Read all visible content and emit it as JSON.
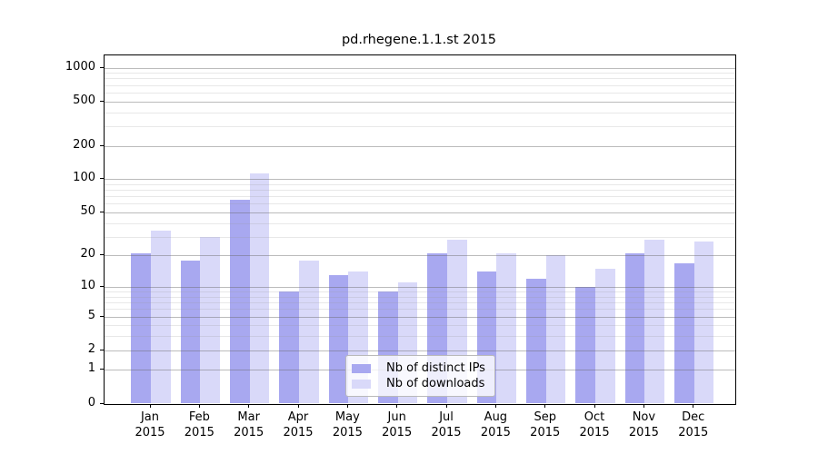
{
  "title": "pd.rhegene.1.1.st 2015",
  "chart_data": {
    "type": "bar",
    "title": "pd.rhegene.1.1.st 2015",
    "xlabel": "",
    "ylabel": "",
    "year": "2015",
    "months": [
      "Jan",
      "Feb",
      "Mar",
      "Apr",
      "May",
      "Jun",
      "Jul",
      "Aug",
      "Sep",
      "Oct",
      "Nov",
      "Dec"
    ],
    "categories": [
      "Jan 2015",
      "Feb 2015",
      "Mar 2015",
      "Apr 2015",
      "May 2015",
      "Jun 2015",
      "Jul 2015",
      "Aug 2015",
      "Sep 2015",
      "Oct 2015",
      "Nov 2015",
      "Dec 2015"
    ],
    "series": [
      {
        "name": "Nb of distinct IPs",
        "color": "#a8a8f0",
        "values": [
          21,
          18,
          65,
          9,
          13,
          9,
          21,
          14,
          12,
          10,
          21,
          17
        ]
      },
      {
        "name": "Nb of downloads",
        "color": "#d9d9f9",
        "values": [
          34,
          30,
          112,
          18,
          14,
          11,
          28,
          21,
          20,
          15,
          28,
          27
        ]
      }
    ],
    "y_scale": "log10(1+x)",
    "y_ticks": [
      1000,
      500,
      200,
      100,
      50,
      20,
      10,
      5,
      2,
      1,
      0
    ],
    "y_minor_gridlines": [
      3,
      4,
      6,
      7,
      8,
      9,
      30,
      40,
      60,
      70,
      80,
      90,
      300,
      400,
      600,
      700,
      800,
      900
    ],
    "ylim": [
      0,
      1280
    ],
    "grid": true,
    "legend_position": "lower-center"
  }
}
